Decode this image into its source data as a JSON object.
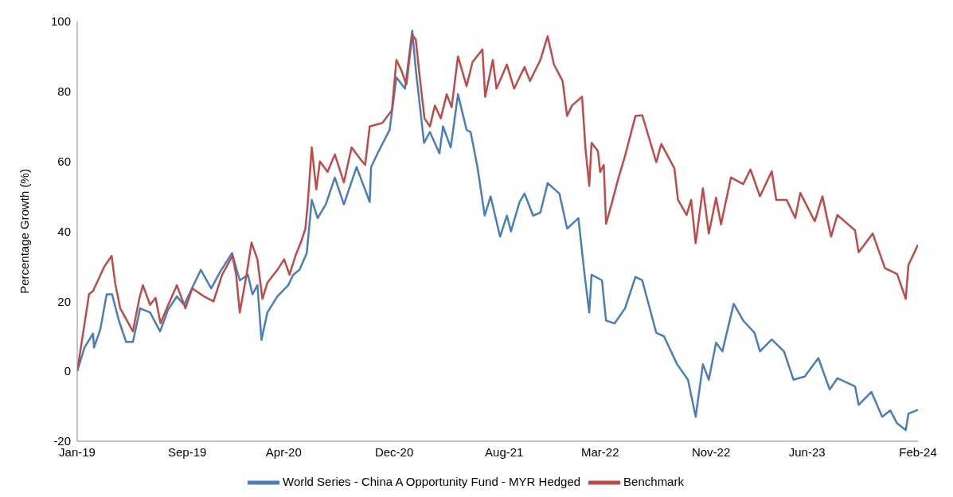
{
  "chart_data": {
    "type": "line",
    "ylabel": "Percentage Growth (%)",
    "xlim": [
      "2019-01-01",
      "2024-02-01"
    ],
    "xticks": [
      {
        "value": "2019-01-01",
        "label": "Jan-19"
      },
      {
        "value": "2019-09-01",
        "label": "Sep-19"
      },
      {
        "value": "2020-04-01",
        "label": "Apr-20"
      },
      {
        "value": "2020-12-01",
        "label": "Dec-20"
      },
      {
        "value": "2021-08-01",
        "label": "Aug-21"
      },
      {
        "value": "2022-03-01",
        "label": "Mar-22"
      },
      {
        "value": "2022-11-01",
        "label": "Nov-22"
      },
      {
        "value": "2023-06-01",
        "label": "Jun-23"
      },
      {
        "value": "2024-02-01",
        "label": "Feb-24"
      }
    ],
    "ylim": [
      -20,
      100
    ],
    "yticks": [
      -20,
      0,
      20,
      40,
      60,
      80,
      100
    ],
    "legend": "bottom",
    "marker": "none",
    "series": [
      {
        "name": "World Series - China A Opportunity Fund - MYR Hedged",
        "color": "#4a7ebb",
        "x": [
          "2019-01-01",
          "2019-01-17",
          "2019-02-05",
          "2019-02-07",
          "2019-02-21",
          "2019-03-07",
          "2019-03-19",
          "2019-04-03",
          "2019-04-19",
          "2019-05-04",
          "2019-05-20",
          "2019-06-11",
          "2019-07-03",
          "2019-07-21",
          "2019-08-09",
          "2019-08-25",
          "2019-10-01",
          "2019-10-24",
          "2019-11-12",
          "2019-12-09",
          "2019-12-26",
          "2020-01-13",
          "2020-01-23",
          "2020-02-03",
          "2020-02-12",
          "2020-02-25",
          "2020-03-18",
          "2020-04-11",
          "2020-04-22",
          "2020-05-06",
          "2020-05-22",
          "2020-06-02",
          "2020-06-15",
          "2020-07-03",
          "2020-07-23",
          "2020-08-12",
          "2020-09-09",
          "2020-10-08",
          "2020-10-11",
          "2020-10-28",
          "2020-11-21",
          "2020-12-06",
          "2020-12-25",
          "2021-01-10",
          "2021-01-18",
          "2021-02-05",
          "2021-02-18",
          "2021-03-11",
          "2021-03-19",
          "2021-04-05",
          "2021-04-21",
          "2021-05-10",
          "2021-05-19",
          "2021-06-03",
          "2021-06-19",
          "2021-07-02",
          "2021-07-23",
          "2021-08-07",
          "2021-08-16",
          "2021-09-04",
          "2021-09-15",
          "2021-10-04",
          "2021-10-20",
          "2021-11-05",
          "2021-12-01",
          "2021-12-18",
          "2022-01-12",
          "2022-01-25",
          "2022-02-05",
          "2022-02-10",
          "2022-03-05",
          "2022-03-14",
          "2022-04-02",
          "2022-04-25",
          "2022-05-18",
          "2022-06-02",
          "2022-07-03",
          "2022-07-20",
          "2022-08-18",
          "2022-09-11",
          "2022-09-28",
          "2022-10-14",
          "2022-10-27",
          "2022-11-12",
          "2022-11-26",
          "2022-12-21",
          "2023-01-11",
          "2023-02-05",
          "2023-02-17",
          "2023-03-15",
          "2023-04-11",
          "2023-05-02",
          "2023-05-27",
          "2023-06-26",
          "2023-07-21",
          "2023-08-07",
          "2023-09-15",
          "2023-09-23",
          "2023-10-21",
          "2023-11-14",
          "2023-12-02",
          "2023-12-17",
          "2024-01-05",
          "2024-01-11",
          "2024-02-01"
        ],
        "values": [
          0,
          6.8,
          10.8,
          6.8,
          12,
          22,
          22,
          14.5,
          8.4,
          8.4,
          18,
          16.8,
          11.4,
          17.7,
          21.4,
          19,
          29,
          23.7,
          28.3,
          33.8,
          26,
          27.6,
          22,
          24.6,
          9,
          16.8,
          21.4,
          24.6,
          27.6,
          29,
          33.8,
          49,
          43.8,
          47.7,
          55.4,
          47.7,
          58.4,
          48.4,
          58.4,
          63,
          69,
          84,
          80.8,
          97.4,
          86,
          65.3,
          68.4,
          62.3,
          70,
          64,
          79.2,
          69,
          68.4,
          58.4,
          44.5,
          50,
          38.5,
          44.5,
          40,
          48.4,
          50.8,
          44.5,
          45.4,
          53.8,
          50.8,
          40.8,
          43.8,
          28.3,
          16.8,
          27.6,
          26,
          14.5,
          13.7,
          18,
          27,
          26,
          11,
          10,
          2,
          -2.4,
          -13,
          2,
          -2.4,
          8.2,
          5.7,
          19.3,
          14.5,
          11,
          5.7,
          9.1,
          5.7,
          -2.4,
          -1.5,
          3.8,
          -5.2,
          -2,
          -4.3,
          -9.6,
          -5.9,
          -13,
          -11.2,
          -14.9,
          -16.8,
          -12.1,
          -11
        ]
      },
      {
        "name": "Benchmark",
        "color": "#be4b48",
        "x": [
          "2019-01-01",
          "2019-01-22",
          "2019-01-27",
          "2019-02-05",
          "2019-03-02",
          "2019-03-18",
          "2019-03-26",
          "2019-04-06",
          "2019-05-04",
          "2019-05-18",
          "2019-05-26",
          "2019-06-11",
          "2019-06-23",
          "2019-07-04",
          "2019-07-21",
          "2019-08-09",
          "2019-08-28",
          "2019-09-12",
          "2019-10-08",
          "2019-10-29",
          "2019-11-17",
          "2019-12-10",
          "2019-12-18",
          "2019-12-26",
          "2020-01-10",
          "2020-01-21",
          "2020-02-03",
          "2020-02-14",
          "2020-02-25",
          "2020-03-18",
          "2020-04-02",
          "2020-04-14",
          "2020-04-27",
          "2020-05-11",
          "2020-05-19",
          "2020-05-24",
          "2020-06-02",
          "2020-06-12",
          "2020-06-20",
          "2020-07-07",
          "2020-07-23",
          "2020-08-12",
          "2020-08-29",
          "2020-09-17",
          "2020-09-28",
          "2020-10-08",
          "2020-11-05",
          "2020-11-26",
          "2020-12-06",
          "2020-12-17",
          "2020-12-28",
          "2021-01-10",
          "2021-01-18",
          "2021-01-26",
          "2021-02-06",
          "2021-02-18",
          "2021-03-01",
          "2021-03-14",
          "2021-03-27",
          "2021-04-07",
          "2021-04-21",
          "2021-05-10",
          "2021-05-23",
          "2021-06-14",
          "2021-06-20",
          "2021-07-07",
          "2021-07-15",
          "2021-08-07",
          "2021-08-23",
          "2021-09-15",
          "2021-09-27",
          "2021-10-20",
          "2021-11-05",
          "2021-11-19",
          "2021-12-08",
          "2021-12-18",
          "2021-12-29",
          "2022-01-20",
          "2022-01-28",
          "2022-02-05",
          "2022-02-10",
          "2022-02-24",
          "2022-03-01",
          "2022-03-09",
          "2022-03-14",
          "2022-03-26",
          "2022-04-09",
          "2022-04-25",
          "2022-05-18",
          "2022-06-02",
          "2022-07-03",
          "2022-07-14",
          "2022-08-12",
          "2022-08-20",
          "2022-09-08",
          "2022-09-18",
          "2022-09-28",
          "2022-10-14",
          "2022-10-27",
          "2022-11-12",
          "2022-11-23",
          "2022-12-15",
          "2023-01-11",
          "2023-01-27",
          "2023-02-17",
          "2023-03-15",
          "2023-03-25",
          "2023-04-17",
          "2023-05-06",
          "2023-05-17",
          "2023-06-18",
          "2023-07-05",
          "2023-07-24",
          "2023-08-07",
          "2023-09-15",
          "2023-09-23",
          "2023-10-24",
          "2023-11-20",
          "2023-12-17",
          "2024-01-05",
          "2024-01-11",
          "2024-02-01"
        ],
        "values": [
          0,
          17.7,
          22,
          23,
          30,
          33,
          25,
          18,
          11.4,
          20.7,
          24.6,
          19,
          21,
          13.7,
          19,
          24.6,
          18,
          23.7,
          21.4,
          20,
          27.6,
          33,
          27.6,
          16.8,
          27.6,
          36.8,
          32,
          20.7,
          25.3,
          29,
          32,
          27.6,
          33,
          37.6,
          40.8,
          47.7,
          64,
          52,
          60,
          57,
          62,
          54,
          64,
          60.7,
          59,
          70,
          71,
          74.6,
          89,
          86,
          82,
          96.3,
          94.7,
          84.7,
          72.3,
          70,
          76,
          72.3,
          79.2,
          75.5,
          90,
          81.5,
          88.4,
          92,
          78.5,
          89,
          80.8,
          87.7,
          80.8,
          87,
          83,
          89,
          95.8,
          87.7,
          83,
          73,
          76,
          78.5,
          63,
          53,
          65.3,
          63,
          57,
          59,
          42.2,
          47.7,
          54.6,
          61.6,
          73,
          73.2,
          59.8,
          65,
          58,
          49,
          44.7,
          49,
          36.6,
          52.3,
          39.4,
          49.6,
          42,
          55.4,
          53.5,
          57.7,
          50,
          57.2,
          49,
          49,
          43.8,
          51,
          42.9,
          50,
          38.5,
          44.7,
          40.3,
          34,
          39.4,
          29.5,
          27.8,
          20.7,
          30.4,
          36.2
        ]
      }
    ]
  }
}
